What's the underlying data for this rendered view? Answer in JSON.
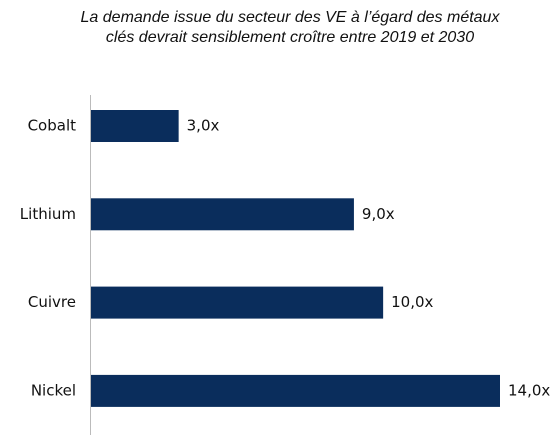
{
  "chart_data": {
    "type": "hbar",
    "title": "La demande issue du secteur des VE à l’égard des métaux clés devrait sensiblement croître entre 2019 et 2030",
    "categories": [
      "Cobalt",
      "Lithium",
      "Cuivre",
      "Nickel"
    ],
    "values": [
      3,
      9,
      10,
      14
    ],
    "value_labels": [
      "3,0x",
      "9,0x",
      "10,0x",
      "14,0x"
    ],
    "color": "#0a2d5c"
  }
}
